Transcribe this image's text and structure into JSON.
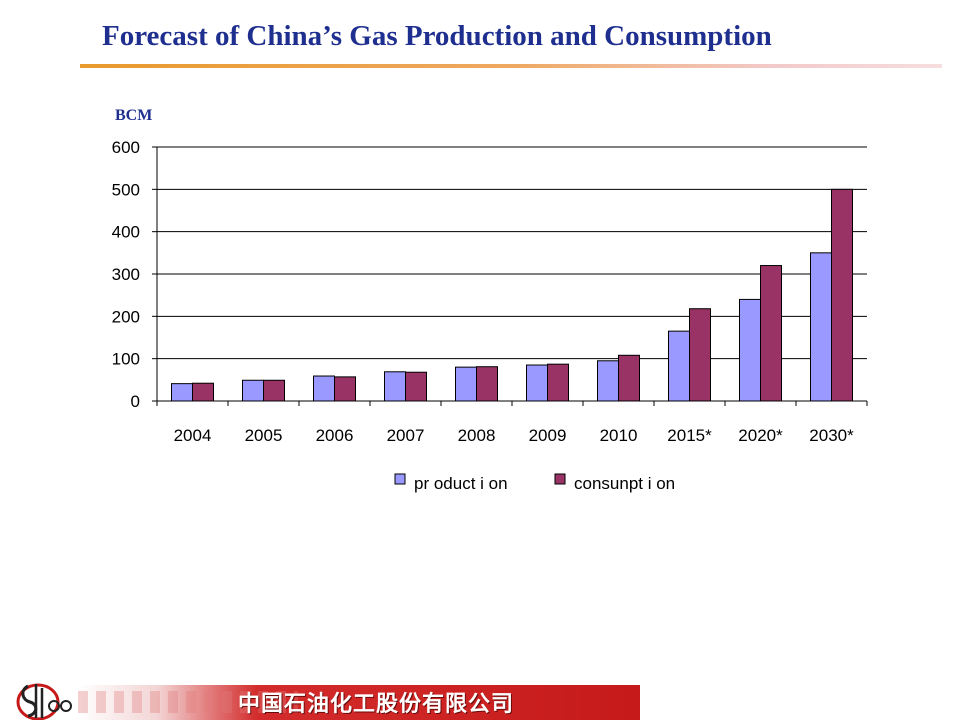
{
  "slide": {
    "title": "Forecast of China’s Gas Production and Consumption",
    "unit_label": "BCM",
    "company_name": "中国石油化工股份有限公司",
    "logo_name": "sinopec-logo",
    "colors": {
      "title": "#1f2f8f",
      "rule": "#e99a2c",
      "footer_band": "#c61a1a"
    }
  },
  "chart_data": {
    "type": "bar",
    "title": "",
    "xlabel": "",
    "ylabel": "BCM",
    "ylim": [
      0,
      600
    ],
    "yticks": [
      0,
      100,
      200,
      300,
      400,
      500,
      600
    ],
    "grid": true,
    "legend_position": "bottom",
    "categories": [
      "2004",
      "2005",
      "2006",
      "2007",
      "2008",
      "2009",
      "2010",
      "2015*",
      "2020*",
      "2030*"
    ],
    "series": [
      {
        "name": "production",
        "color": "#9999ff",
        "values": [
          41,
          49,
          59,
          69,
          80,
          85,
          95,
          165,
          240,
          350
        ]
      },
      {
        "name": "consumption",
        "color": "#993366",
        "values": [
          42,
          49,
          57,
          68,
          81,
          87,
          108,
          218,
          320,
          500
        ]
      }
    ],
    "legend_labels": [
      "pr oduct i on",
      "consunpt i on"
    ]
  }
}
